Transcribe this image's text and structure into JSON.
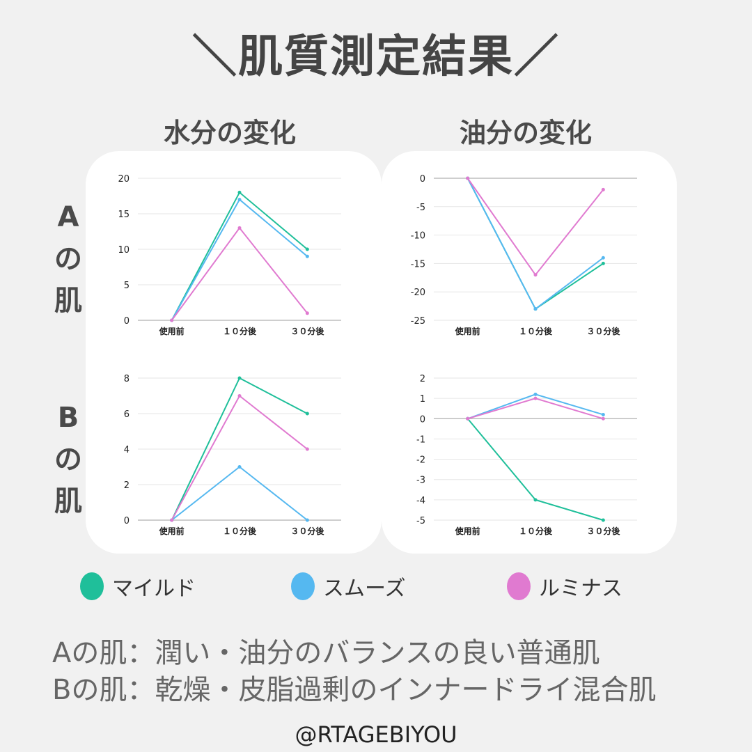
{
  "title": "＼肌質測定結果／",
  "columns": [
    "水分の変化",
    "油分の変化"
  ],
  "rows": [
    {
      "line1": "A",
      "line2": "の",
      "line3": "肌"
    },
    {
      "line1": "B",
      "line2": "の",
      "line3": "肌"
    }
  ],
  "colors": {
    "mild": "#1fbf9a",
    "smooth": "#55b8f0",
    "luminous": "#e07ad0"
  },
  "legend": [
    {
      "label": "マイルド",
      "color": "#1fbf9a"
    },
    {
      "label": "スムーズ",
      "color": "#55b8f0"
    },
    {
      "label": "ルミナス",
      "color": "#e07ad0"
    }
  ],
  "description": [
    "Aの肌：潤い・油分のバランスの良い普通肌",
    "Bの肌：乾燥・皮脂過剰のインナードライ混合肌"
  ],
  "handle": "@RTAGEBIYOU",
  "chart_data": [
    {
      "type": "line",
      "row": "A",
      "column": "水分の変化",
      "categories": [
        "使用前",
        "１０分後",
        "３０分後"
      ],
      "yticks": [
        0,
        5,
        10,
        15,
        20
      ],
      "ylim": [
        0,
        20
      ],
      "series": [
        {
          "name": "マイルド",
          "values": [
            0,
            18,
            10
          ]
        },
        {
          "name": "スムーズ",
          "values": [
            0,
            17,
            9
          ]
        },
        {
          "name": "ルミナス",
          "values": [
            0,
            13,
            1
          ]
        }
      ]
    },
    {
      "type": "line",
      "row": "A",
      "column": "油分の変化",
      "categories": [
        "使用前",
        "１０分後",
        "３０分後"
      ],
      "yticks": [
        0,
        -5,
        -10,
        -15,
        -20,
        -25
      ],
      "ylim": [
        -25,
        0
      ],
      "series": [
        {
          "name": "マイルド",
          "values": [
            0,
            -23,
            -15
          ]
        },
        {
          "name": "スムーズ",
          "values": [
            0,
            -23,
            -14
          ]
        },
        {
          "name": "ルミナス",
          "values": [
            0,
            -17,
            -2
          ]
        }
      ]
    },
    {
      "type": "line",
      "row": "B",
      "column": "水分の変化",
      "categories": [
        "使用前",
        "１０分後",
        "３０分後"
      ],
      "yticks": [
        0,
        2,
        4,
        6,
        8
      ],
      "ylim": [
        0,
        8
      ],
      "series": [
        {
          "name": "マイルド",
          "values": [
            0,
            8,
            6
          ]
        },
        {
          "name": "スムーズ",
          "values": [
            0,
            3,
            0
          ]
        },
        {
          "name": "ルミナス",
          "values": [
            0,
            7,
            4
          ]
        }
      ]
    },
    {
      "type": "line",
      "row": "B",
      "column": "油分の変化",
      "categories": [
        "使用前",
        "１０分後",
        "３０分後"
      ],
      "yticks": [
        2,
        1,
        0,
        -1,
        -2,
        -3,
        -4,
        -5
      ],
      "ylim": [
        -5,
        2
      ],
      "series": [
        {
          "name": "マイルド",
          "values": [
            0,
            -4,
            -5
          ]
        },
        {
          "name": "スムーズ",
          "values": [
            0,
            1.2,
            0.2
          ]
        },
        {
          "name": "ルミナス",
          "values": [
            0,
            1,
            0
          ]
        }
      ]
    }
  ]
}
